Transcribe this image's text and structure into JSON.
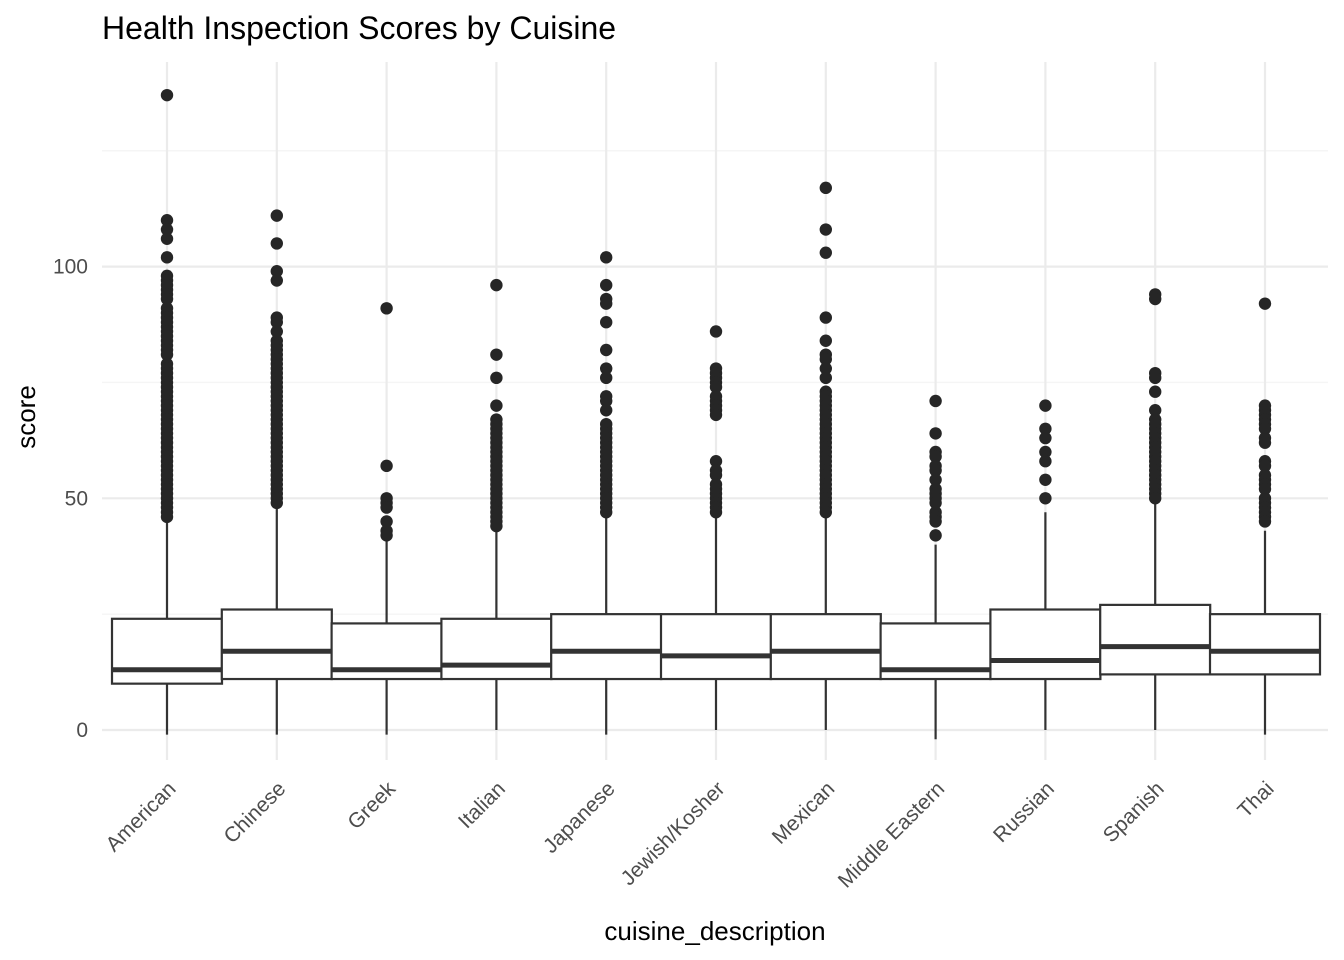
{
  "chart_data": {
    "type": "boxplot",
    "title": "Health Inspection Scores by Cuisine",
    "xlabel": "cuisine_description",
    "ylabel": "score",
    "ylim": [
      -8,
      144
    ],
    "yticks": [
      0,
      50,
      100
    ],
    "grid": true,
    "legend": "none",
    "colors": {
      "box_stroke": "#333333",
      "point": "#262626",
      "grid_major": "#ebebeb",
      "grid_minor": "#f5f5f5"
    },
    "categories": [
      "American",
      "Chinese",
      "Greek",
      "Italian",
      "Japanese",
      "Jewish/Kosher",
      "Mexican",
      "Middle Eastern",
      "Russian",
      "Spanish",
      "Thai"
    ],
    "boxes": [
      {
        "category": "American",
        "whisker_low": -1,
        "q1": 10,
        "median": 13,
        "q3": 24,
        "whisker_high": 46,
        "outliers": [
          137,
          110,
          108,
          106,
          102,
          98,
          97,
          96,
          95,
          94,
          93,
          91,
          90,
          89,
          88,
          87,
          86,
          85,
          84,
          83,
          82,
          81,
          79,
          78,
          77,
          76,
          75,
          74,
          73,
          72,
          71,
          70,
          69,
          68,
          67,
          66,
          65,
          64,
          63,
          62,
          61,
          60,
          59,
          58,
          57,
          56,
          55,
          54,
          53,
          52,
          51,
          50,
          49,
          48,
          47,
          46
        ]
      },
      {
        "category": "Chinese",
        "whisker_low": -1,
        "q1": 11,
        "median": 17,
        "q3": 26,
        "whisker_high": 49,
        "outliers": [
          111,
          105,
          99,
          97,
          89,
          88,
          86,
          84,
          83,
          82,
          81,
          80,
          79,
          78,
          77,
          76,
          75,
          74,
          73,
          72,
          71,
          70,
          69,
          68,
          67,
          66,
          65,
          64,
          63,
          62,
          61,
          60,
          59,
          58,
          57,
          56,
          55,
          54,
          53,
          52,
          51,
          50,
          49
        ]
      },
      {
        "category": "Greek",
        "whisker_low": -1,
        "q1": 11,
        "median": 13,
        "q3": 23,
        "whisker_high": 41,
        "outliers": [
          91,
          57,
          50,
          49,
          48,
          45,
          43,
          42
        ]
      },
      {
        "category": "Italian",
        "whisker_low": 0,
        "q1": 11,
        "median": 14,
        "q3": 24,
        "whisker_high": 43,
        "outliers": [
          96,
          81,
          76,
          70,
          67,
          66,
          65,
          64,
          63,
          62,
          61,
          60,
          59,
          58,
          57,
          56,
          55,
          54,
          53,
          52,
          51,
          50,
          49,
          48,
          47,
          46,
          45,
          44
        ]
      },
      {
        "category": "Japanese",
        "whisker_low": -1,
        "q1": 11,
        "median": 17,
        "q3": 25,
        "whisker_high": 47,
        "outliers": [
          102,
          96,
          93,
          92,
          88,
          82,
          78,
          76,
          72,
          71,
          69,
          66,
          65,
          64,
          63,
          62,
          61,
          60,
          59,
          58,
          57,
          56,
          55,
          54,
          53,
          52,
          51,
          50,
          49,
          48,
          47
        ]
      },
      {
        "category": "Jewish/Kosher",
        "whisker_low": 0,
        "q1": 11,
        "median": 16,
        "q3": 25,
        "whisker_high": 46,
        "outliers": [
          86,
          78,
          77,
          76,
          75,
          74,
          72,
          71,
          70,
          69,
          68,
          58,
          56,
          55,
          53,
          52,
          51,
          50,
          49,
          48,
          47
        ]
      },
      {
        "category": "Mexican",
        "whisker_low": 0,
        "q1": 11,
        "median": 17,
        "q3": 25,
        "whisker_high": 47,
        "outliers": [
          117,
          108,
          103,
          89,
          84,
          81,
          80,
          78,
          76,
          73,
          72,
          71,
          70,
          69,
          68,
          67,
          66,
          65,
          64,
          63,
          62,
          61,
          60,
          59,
          58,
          57,
          56,
          55,
          54,
          53,
          52,
          51,
          50,
          49,
          48,
          47
        ]
      },
      {
        "category": "Middle Eastern",
        "whisker_low": -2,
        "q1": 11,
        "median": 13,
        "q3": 23,
        "whisker_high": 40,
        "outliers": [
          71,
          64,
          60,
          59,
          57,
          56,
          54,
          52,
          51,
          50,
          49,
          47,
          46,
          45,
          42
        ]
      },
      {
        "category": "Russian",
        "whisker_low": 0,
        "q1": 11,
        "median": 15,
        "q3": 26,
        "whisker_high": 47,
        "outliers": [
          70,
          65,
          63,
          60,
          58,
          54,
          50
        ]
      },
      {
        "category": "Spanish",
        "whisker_low": 0,
        "q1": 12,
        "median": 18,
        "q3": 27,
        "whisker_high": 49,
        "outliers": [
          94,
          93,
          77,
          76,
          73,
          69,
          67,
          66,
          65,
          64,
          63,
          62,
          61,
          60,
          59,
          58,
          57,
          56,
          55,
          54,
          53,
          52,
          51,
          50
        ]
      },
      {
        "category": "Thai",
        "whisker_low": -1,
        "q1": 12,
        "median": 17,
        "q3": 25,
        "whisker_high": 43,
        "outliers": [
          92,
          70,
          69,
          68,
          67,
          66,
          65,
          63,
          62,
          58,
          57,
          55,
          54,
          53,
          52,
          50,
          49,
          48,
          47,
          46,
          45
        ]
      }
    ]
  }
}
